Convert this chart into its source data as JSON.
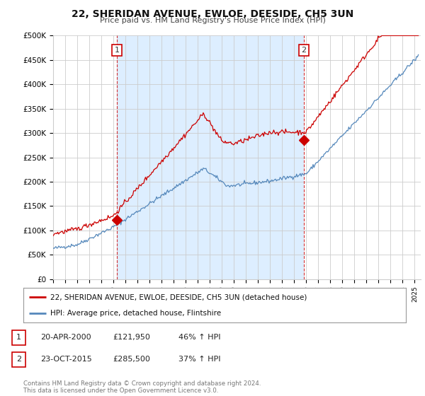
{
  "title": "22, SHERIDAN AVENUE, EWLOE, DEESIDE, CH5 3UN",
  "subtitle": "Price paid vs. HM Land Registry's House Price Index (HPI)",
  "ylabel_ticks": [
    "£0",
    "£50K",
    "£100K",
    "£150K",
    "£200K",
    "£250K",
    "£300K",
    "£350K",
    "£400K",
    "£450K",
    "£500K"
  ],
  "ytick_vals": [
    0,
    50000,
    100000,
    150000,
    200000,
    250000,
    300000,
    350000,
    400000,
    450000,
    500000
  ],
  "ylim": [
    0,
    500000
  ],
  "xlim_start": 1995.0,
  "xlim_end": 2025.5,
  "property_color": "#cc0000",
  "hpi_color": "#5588bb",
  "shade_color": "#ddeeff",
  "sale1_x": 2000.3,
  "sale1_y": 121950,
  "sale2_x": 2015.8,
  "sale2_y": 285500,
  "sale1_label": "1",
  "sale2_label": "2",
  "legend_line1": "22, SHERIDAN AVENUE, EWLOE, DEESIDE, CH5 3UN (detached house)",
  "legend_line2": "HPI: Average price, detached house, Flintshire",
  "table_row1_num": "1",
  "table_row1_date": "20-APR-2000",
  "table_row1_price": "£121,950",
  "table_row1_hpi": "46% ↑ HPI",
  "table_row2_num": "2",
  "table_row2_date": "23-OCT-2015",
  "table_row2_price": "£285,500",
  "table_row2_hpi": "37% ↑ HPI",
  "footnote": "Contains HM Land Registry data © Crown copyright and database right 2024.\nThis data is licensed under the Open Government Licence v3.0.",
  "dashed_vline1_x": 2000.3,
  "dashed_vline2_x": 2015.8,
  "background_color": "#ffffff",
  "grid_color": "#cccccc"
}
